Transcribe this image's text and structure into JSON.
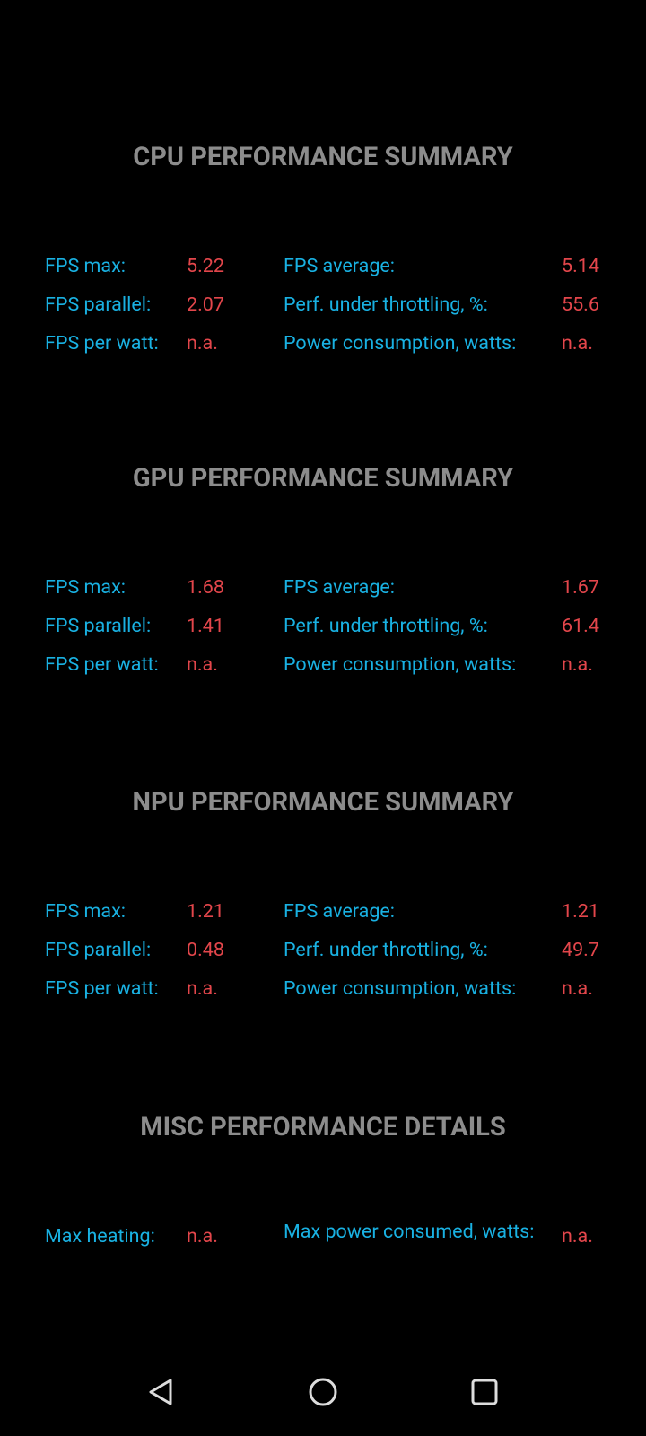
{
  "sections": [
    {
      "title": "CPU PERFORMANCE SUMMARY",
      "rows": [
        [
          "FPS max:",
          5.22,
          "FPS average:",
          5.14
        ],
        [
          "FPS parallel:",
          2.07,
          "Perf. under throttling, %:",
          55.6
        ],
        [
          "FPS per watt:",
          "n.a.",
          "Power consumption, watts:",
          "n.a."
        ]
      ]
    },
    {
      "title": "GPU PERFORMANCE SUMMARY",
      "rows": [
        [
          "FPS max:",
          1.68,
          "FPS average:",
          1.67
        ],
        [
          "FPS parallel:",
          1.41,
          "Perf. under throttling, %:",
          61.4
        ],
        [
          "FPS per watt:",
          "n.a.",
          "Power consumption, watts:",
          "n.a."
        ]
      ]
    },
    {
      "title": "NPU PERFORMANCE SUMMARY",
      "rows": [
        [
          "FPS max:",
          1.21,
          "FPS average:",
          1.21
        ],
        [
          "FPS parallel:",
          0.48,
          "Perf. under throttling, %:",
          49.7
        ],
        [
          "FPS per watt:",
          "n.a.",
          "Power consumption, watts:",
          "n.a."
        ]
      ]
    },
    {
      "title": "MISC PERFORMANCE DETAILS",
      "rows": [
        [
          "Max heating:",
          "n.a.",
          "Max power consumed, watts:",
          "n.a."
        ]
      ]
    }
  ]
}
